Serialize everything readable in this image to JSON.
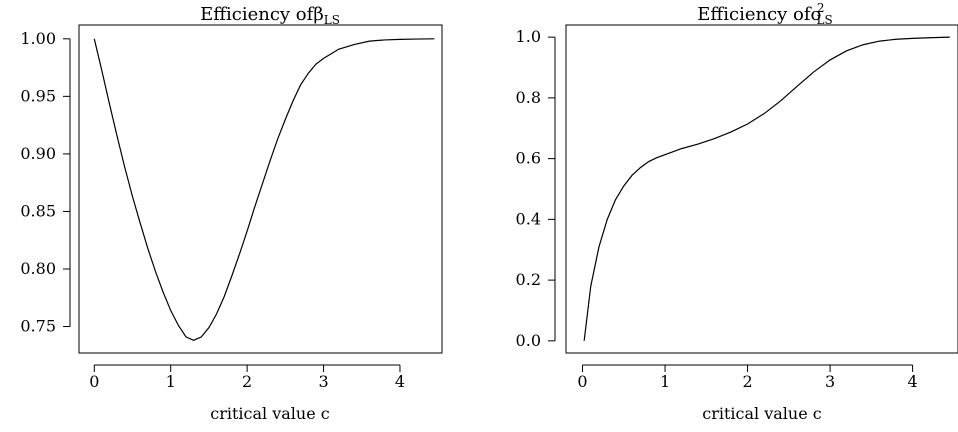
{
  "chart_data": [
    {
      "type": "line",
      "title": "Efficiency of",
      "title_symbol": "β",
      "title_subscript": "LS",
      "title_superscript": "",
      "xlabel": "critical value c",
      "ylabel": "",
      "xlim": [
        -0.2,
        4.55
      ],
      "ylim": [
        0.727,
        1.012
      ],
      "xticks": [
        0,
        1,
        2,
        3,
        4
      ],
      "xtick_labels": [
        "0",
        "1",
        "2",
        "3",
        "4"
      ],
      "yticks": [
        0.75,
        0.8,
        0.85,
        0.9,
        0.95,
        1.0
      ],
      "ytick_labels": [
        "0.75",
        "0.80",
        "0.85",
        "0.90",
        "0.95",
        "1.00"
      ],
      "grid": false,
      "series": [
        {
          "x": [
            0,
            0.1,
            0.2,
            0.3,
            0.4,
            0.5,
            0.6,
            0.7,
            0.8,
            0.9,
            1.0,
            1.1,
            1.2,
            1.3,
            1.4,
            1.5,
            1.6,
            1.7,
            1.8,
            1.9,
            2.0,
            2.1,
            2.2,
            2.3,
            2.4,
            2.5,
            2.6,
            2.7,
            2.8,
            2.9,
            3.0,
            3.2,
            3.4,
            3.6,
            3.8,
            4.0,
            4.2,
            4.45
          ],
          "y": [
            1.0,
            0.972,
            0.943,
            0.915,
            0.888,
            0.863,
            0.84,
            0.818,
            0.798,
            0.78,
            0.764,
            0.751,
            0.741,
            0.738,
            0.741,
            0.749,
            0.761,
            0.776,
            0.794,
            0.813,
            0.833,
            0.854,
            0.874,
            0.894,
            0.913,
            0.93,
            0.946,
            0.96,
            0.97,
            0.978,
            0.983,
            0.991,
            0.995,
            0.998,
            0.999,
            0.9995,
            0.9998,
            1.0
          ]
        }
      ]
    },
    {
      "type": "line",
      "title": "Efficiency of",
      "title_symbol": "σ",
      "title_subscript": "LS",
      "title_superscript": "2",
      "xlabel": "critical value c",
      "ylabel": "",
      "xlim": [
        -0.2,
        4.55
      ],
      "ylim": [
        -0.04,
        1.04
      ],
      "xticks": [
        0,
        1,
        2,
        3,
        4
      ],
      "xtick_labels": [
        "0",
        "1",
        "2",
        "3",
        "4"
      ],
      "yticks": [
        0.0,
        0.2,
        0.4,
        0.6,
        0.8,
        1.0
      ],
      "ytick_labels": [
        "0.0",
        "0.2",
        "0.4",
        "0.6",
        "0.8",
        "1.0"
      ],
      "grid": false,
      "series": [
        {
          "x": [
            0.02,
            0.1,
            0.2,
            0.3,
            0.4,
            0.5,
            0.6,
            0.7,
            0.8,
            0.9,
            1.0,
            1.2,
            1.4,
            1.6,
            1.8,
            2.0,
            2.2,
            2.4,
            2.6,
            2.8,
            3.0,
            3.2,
            3.4,
            3.6,
            3.8,
            4.0,
            4.2,
            4.45
          ],
          "y": [
            0.0,
            0.18,
            0.31,
            0.4,
            0.465,
            0.51,
            0.545,
            0.57,
            0.59,
            0.603,
            0.613,
            0.633,
            0.648,
            0.666,
            0.688,
            0.714,
            0.748,
            0.79,
            0.838,
            0.885,
            0.925,
            0.955,
            0.975,
            0.987,
            0.993,
            0.996,
            0.998,
            1.0
          ]
        }
      ]
    }
  ]
}
